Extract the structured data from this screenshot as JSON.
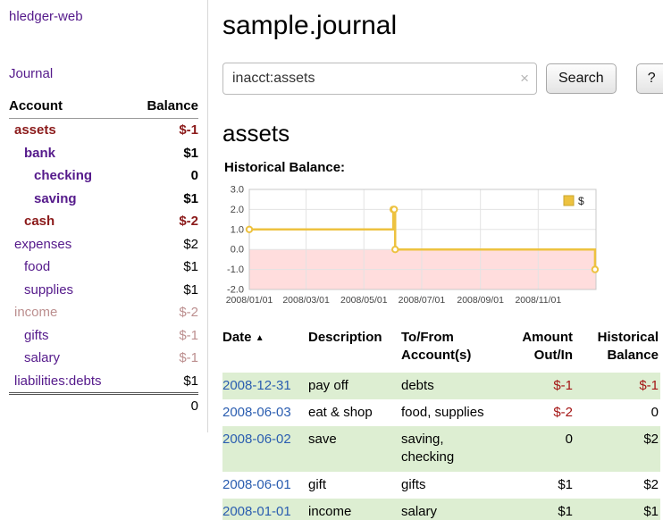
{
  "colors": {
    "link_purple": "#551a8b",
    "negative_red": "#8b1a1a",
    "table_negative_red": "#a41414",
    "muted_negative": "#bc8f8f",
    "date_link_blue": "#2a5db0",
    "row_shade_green": "#ddeed2",
    "chart_line_gold": "#edc240",
    "chart_below_zero_pink": "#ffdddd"
  },
  "sidebar": {
    "app_title": "hledger-web",
    "journal_link": "Journal",
    "accounts": {
      "account_header": "Account",
      "balance_header": "Balance",
      "rows": [
        {
          "name": "assets",
          "balance": "$-1",
          "indent": 0,
          "name_class": "negbold",
          "bal_class": "negbold"
        },
        {
          "name": "bank",
          "balance": "$1",
          "indent": 1,
          "name_class": "linkbold",
          "bal_class": "bold"
        },
        {
          "name": "checking",
          "balance": "0",
          "indent": 2,
          "name_class": "linkbold",
          "bal_class": "bold"
        },
        {
          "name": "saving",
          "balance": "$1",
          "indent": 2,
          "name_class": "linkbold",
          "bal_class": "bold"
        },
        {
          "name": "cash",
          "balance": "$-2",
          "indent": 1,
          "name_class": "negbold",
          "bal_class": "negbold"
        },
        {
          "name": "expenses",
          "balance": "$2",
          "indent": 0,
          "name_class": "link",
          "bal_class": "plain"
        },
        {
          "name": "food",
          "balance": "$1",
          "indent": 1,
          "name_class": "link",
          "bal_class": "plain"
        },
        {
          "name": "supplies",
          "balance": "$1",
          "indent": 1,
          "name_class": "link",
          "bal_class": "plain"
        },
        {
          "name": "income",
          "balance": "$-2",
          "indent": 0,
          "name_class": "muted",
          "bal_class": "muted"
        },
        {
          "name": "gifts",
          "balance": "$-1",
          "indent": 1,
          "name_class": "link",
          "bal_class": "muted"
        },
        {
          "name": "salary",
          "balance": "$-1",
          "indent": 1,
          "name_class": "link",
          "bal_class": "muted"
        },
        {
          "name": "liabilities:debts",
          "balance": "$1",
          "indent": 0,
          "name_class": "link",
          "bal_class": "plain"
        }
      ],
      "total": "0"
    }
  },
  "main": {
    "title": "sample.journal",
    "search": {
      "value": "inacct:assets",
      "clear_icon": "×",
      "button_label": "Search",
      "help_label": "?"
    },
    "account_heading": "assets",
    "chart_title": "Historical Balance:"
  },
  "chart_data": {
    "type": "line",
    "title": "Historical Balance",
    "step": true,
    "grid": true,
    "legend_position": "top-right",
    "legend": [
      {
        "label": "$",
        "color": "#edc240"
      }
    ],
    "ylim": [
      -2,
      3
    ],
    "yticks": [
      3.0,
      2.0,
      1.0,
      0.0,
      -1.0,
      -2.0
    ],
    "x_range_days": [
      0,
      366
    ],
    "xticks": [
      {
        "label": "2008/01/01",
        "day": 0
      },
      {
        "label": "2008/03/01",
        "day": 60
      },
      {
        "label": "2008/05/01",
        "day": 121
      },
      {
        "label": "2008/07/01",
        "day": 182
      },
      {
        "label": "2008/09/01",
        "day": 244
      },
      {
        "label": "2008/11/01",
        "day": 305
      }
    ],
    "points": [
      {
        "date": "2008-01-01",
        "day": 0,
        "value": 1
      },
      {
        "date": "2008-06-01",
        "day": 152,
        "value": 2
      },
      {
        "date": "2008-06-02",
        "day": 153,
        "value": 2
      },
      {
        "date": "2008-06-03",
        "day": 154,
        "value": 0
      },
      {
        "date": "2008-12-31",
        "day": 365,
        "value": -1
      }
    ]
  },
  "register": {
    "headers": {
      "date": "Date",
      "sort_icon": "▲",
      "description": "Description",
      "accounts_line1": "To/From",
      "accounts_line2": "Account(s)",
      "amount_line1": "Amount",
      "amount_line2": "Out/In",
      "balance_line1": "Historical",
      "balance_line2": "Balance"
    },
    "rows": [
      {
        "date": "2008-12-31",
        "description": "pay off",
        "accounts": "debts",
        "amount": "$-1",
        "amount_negative": true,
        "balance": "$-1",
        "balance_negative": true,
        "shaded": true
      },
      {
        "date": "2008-06-03",
        "description": "eat & shop",
        "accounts": "food, supplies",
        "amount": "$-2",
        "amount_negative": true,
        "balance": "0",
        "balance_negative": false,
        "shaded": false
      },
      {
        "date": "2008-06-02",
        "description": "save",
        "accounts": "saving, checking",
        "amount": "0",
        "amount_negative": false,
        "balance": "$2",
        "balance_negative": false,
        "shaded": true
      },
      {
        "date": "2008-06-01",
        "description": "gift",
        "accounts": "gifts",
        "amount": "$1",
        "amount_negative": false,
        "balance": "$2",
        "balance_negative": false,
        "shaded": false
      },
      {
        "date": "2008-01-01",
        "description": "income",
        "accounts": "salary",
        "amount": "$1",
        "amount_negative": false,
        "balance": "$1",
        "balance_negative": false,
        "shaded": true
      }
    ]
  }
}
